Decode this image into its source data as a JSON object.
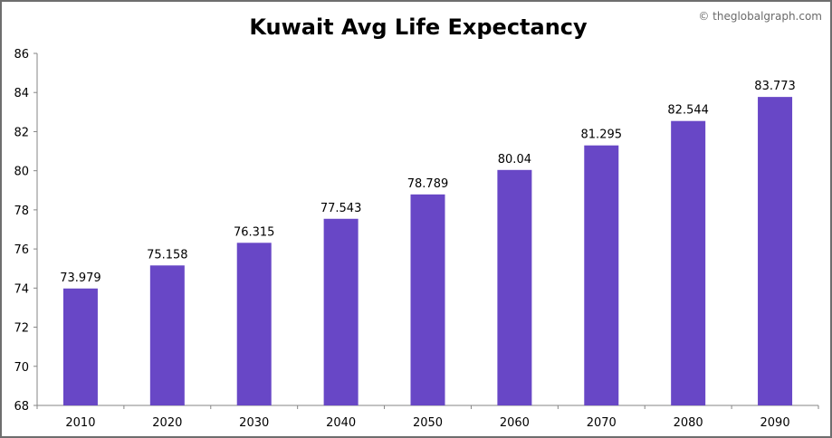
{
  "chart_data": {
    "type": "bar",
    "title": "Kuwait Avg Life Expectancy",
    "watermark": "© theglobalgraph.com",
    "categories": [
      "2010",
      "2020",
      "2030",
      "2040",
      "2050",
      "2060",
      "2070",
      "2080",
      "2090"
    ],
    "values": [
      73.979,
      75.158,
      76.315,
      77.543,
      78.789,
      80.04,
      81.295,
      82.544,
      83.773
    ],
    "data_labels": [
      "73.979",
      "75.158",
      "76.315",
      "77.543",
      "78.789",
      "80.04",
      "81.295",
      "82.544",
      "83.773"
    ],
    "xlabel": "",
    "ylabel": "",
    "ylim": [
      68,
      86
    ],
    "yticks": [
      68,
      70,
      72,
      74,
      76,
      78,
      80,
      82,
      84,
      86
    ],
    "grid": false,
    "legend": "none",
    "bar_color": "#6847c6"
  }
}
